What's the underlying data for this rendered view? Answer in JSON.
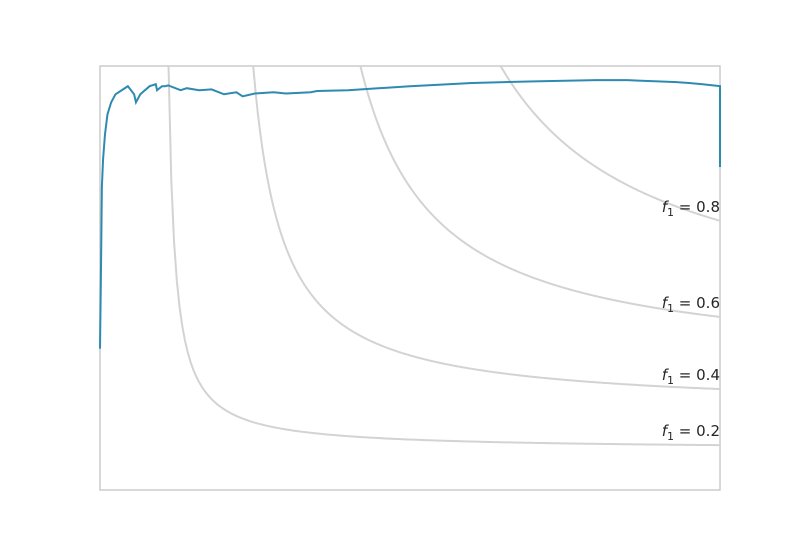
{
  "chart_data": {
    "type": "line",
    "title": "",
    "xlabel": "",
    "ylabel": "",
    "xlim": [
      0,
      1
    ],
    "ylim": [
      0,
      1.05
    ],
    "grid": false,
    "legend": "none",
    "colors": {
      "curve": "#2e8ab0",
      "iso_f1": "#d3d3d3",
      "frame": "#cccccc",
      "label": "#262626"
    },
    "iso_f1_curves": [
      {
        "f1": 0.2,
        "label_var": "f",
        "label_sub": "1",
        "label_rest": " = 0.2"
      },
      {
        "f1": 0.4,
        "label_var": "f",
        "label_sub": "1",
        "label_rest": " = 0.4"
      },
      {
        "f1": 0.6,
        "label_var": "f",
        "label_sub": "1",
        "label_rest": " = 0.6"
      },
      {
        "f1": 0.8,
        "label_var": "f",
        "label_sub": "1",
        "label_rest": " = 0.8"
      }
    ],
    "series": [
      {
        "x": [
          0.0,
          0.002,
          0.003,
          0.005,
          0.008,
          0.012,
          0.018,
          0.025,
          0.035,
          0.045,
          0.055,
          0.058,
          0.065,
          0.08,
          0.09,
          0.092,
          0.1,
          0.105,
          0.11,
          0.13,
          0.14,
          0.16,
          0.18,
          0.2,
          0.22,
          0.23,
          0.25,
          0.28,
          0.3,
          0.34,
          0.35,
          0.4,
          0.5,
          0.6,
          0.7,
          0.8,
          0.85,
          0.9,
          0.93,
          0.95,
          0.97,
          1.0,
          1.0
        ],
        "y": [
          0.35,
          0.6,
          0.75,
          0.82,
          0.88,
          0.93,
          0.96,
          0.98,
          0.99,
          1.0,
          0.98,
          0.96,
          0.98,
          1.0,
          1.005,
          0.99,
          1.0,
          1.0,
          1.002,
          0.99,
          0.995,
          0.99,
          0.992,
          0.98,
          0.985,
          0.975,
          0.982,
          0.985,
          0.982,
          0.985,
          0.988,
          0.99,
          1.0,
          1.008,
          1.012,
          1.015,
          1.015,
          1.012,
          1.01,
          1.008,
          1.005,
          1.0,
          0.8
        ]
      }
    ]
  }
}
